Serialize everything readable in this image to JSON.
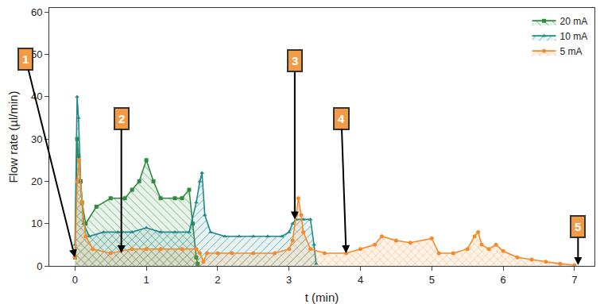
{
  "chart_data": {
    "type": "line",
    "x_label": "t (min)",
    "y_label": "Flow rate (µl/min)",
    "xlim": [
      -0.36,
      7.28
    ],
    "xticks": [
      0,
      1,
      2,
      3,
      4,
      5,
      6,
      7
    ],
    "ylim": [
      0,
      61
    ],
    "yticks": [
      0,
      10,
      20,
      30,
      40,
      50,
      60
    ],
    "legend": "top-right",
    "grid": false,
    "series": [
      {
        "name": "20 mA",
        "color": "#2e8b3e",
        "marker": "square",
        "line_style": "solid",
        "x": [
          0.0,
          0.03,
          0.05,
          0.08,
          0.1,
          0.15,
          0.3,
          0.5,
          0.7,
          0.8,
          0.9,
          1.0,
          1.1,
          1.2,
          1.4,
          1.5,
          1.6,
          1.65,
          1.7,
          1.72
        ],
        "values": [
          2,
          30,
          26,
          20,
          15,
          10,
          14,
          16,
          16,
          18,
          20,
          25,
          20,
          16,
          16,
          16,
          18,
          10,
          2,
          0.5
        ]
      },
      {
        "name": "10 mA",
        "color": "#1f8a8c",
        "marker": "triangle-up",
        "line_style": "solid",
        "x": [
          0.0,
          0.03,
          0.05,
          0.08,
          0.12,
          0.2,
          0.4,
          0.6,
          0.8,
          1.0,
          1.2,
          1.4,
          1.6,
          1.7,
          1.75,
          1.78,
          1.82,
          1.9,
          2.1,
          2.3,
          2.5,
          2.7,
          2.9,
          3.0,
          3.05,
          3.1,
          3.2,
          3.3,
          3.35,
          3.38
        ],
        "values": [
          5,
          40,
          35,
          20,
          10,
          7,
          8,
          8,
          8,
          9,
          8,
          8,
          8,
          15,
          20,
          22,
          12,
          8,
          7,
          7,
          7,
          7,
          7,
          8,
          10,
          11,
          11,
          11,
          5,
          0.5
        ]
      },
      {
        "name": "5 mA",
        "color": "#f58a2a",
        "marker": "circle",
        "line_style": "solid",
        "x": [
          0.0,
          0.03,
          0.06,
          0.1,
          0.15,
          0.25,
          0.5,
          0.8,
          1.0,
          1.2,
          1.5,
          1.7,
          1.75,
          1.8,
          1.85,
          2.0,
          2.2,
          2.5,
          2.8,
          3.0,
          3.05,
          3.1,
          3.13,
          3.17,
          3.2,
          3.3,
          3.5,
          3.8,
          4.0,
          4.2,
          4.3,
          4.5,
          4.7,
          5.0,
          5.1,
          5.3,
          5.5,
          5.6,
          5.65,
          5.7,
          5.8,
          5.9,
          6.0,
          6.2,
          6.4,
          6.6,
          6.8,
          7.0
        ],
        "values": [
          2,
          20,
          25,
          15,
          7,
          4,
          3,
          4,
          4,
          4,
          4,
          4,
          3,
          1,
          3,
          3,
          3,
          3,
          3,
          4,
          6,
          12,
          16,
          12,
          8,
          4,
          3,
          3,
          4,
          5,
          7,
          6,
          5.5,
          6.5,
          3,
          3,
          4,
          7,
          8,
          5,
          4,
          5,
          3.5,
          2,
          1.5,
          1,
          0.5,
          0.2
        ]
      }
    ],
    "annotations": [
      {
        "text": "1",
        "x": 0.0,
        "y": 2
      },
      {
        "text": "2",
        "x": 0.65,
        "y": 3
      },
      {
        "text": "3",
        "x": 3.08,
        "y": 11
      },
      {
        "text": "4",
        "x": 3.8,
        "y": 3
      },
      {
        "text": "5",
        "x": 7.05,
        "y": 0.2
      }
    ]
  }
}
